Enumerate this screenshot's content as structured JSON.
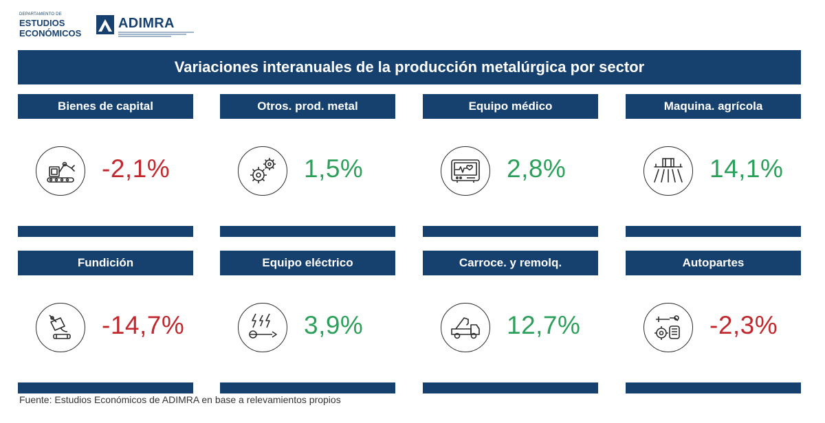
{
  "header": {
    "dept_small": "DEPARTAMENTO DE",
    "dept_line1": "ESTUDIOS",
    "dept_line2": "ECONÓMICOS",
    "brand_name": "ADIMRA"
  },
  "title": "Variaciones interanuales de la producción metalúrgica por sector",
  "colors": {
    "banner": "#16406e",
    "positive": "#2ca05a",
    "negative": "#c0282d"
  },
  "chart_data": {
    "type": "table",
    "title": "Variaciones interanuales de la producción metalúrgica por sector",
    "items": [
      {
        "sector": "Bienes de capital",
        "value": -2.1,
        "label": "-2,1%",
        "icon": "robotic-arm-icon"
      },
      {
        "sector": "Otros. prod. metal",
        "value": 1.5,
        "label": "1,5%",
        "icon": "gears-icon"
      },
      {
        "sector": "Equipo médico",
        "value": 2.8,
        "label": "2,8%",
        "icon": "heart-monitor-icon"
      },
      {
        "sector": "Maquina. agrícola",
        "value": 14.1,
        "label": "14,1%",
        "icon": "tractor-icon"
      },
      {
        "sector": "Fundición",
        "value": -14.7,
        "label": "-14,7%",
        "icon": "foundry-ladle-icon"
      },
      {
        "sector": "Equipo eléctrico",
        "value": 3.9,
        "label": "3,9%",
        "icon": "electric-tools-icon"
      },
      {
        "sector": "Carroce. y remolq.",
        "value": 12.7,
        "label": "12,7%",
        "icon": "tow-truck-icon"
      },
      {
        "sector": "Autopartes",
        "value": -2.3,
        "label": "-2,3%",
        "icon": "engine-parts-icon"
      }
    ]
  },
  "source": "Fuente: Estudios Económicos de ADIMRA en base a relevamientos propios"
}
